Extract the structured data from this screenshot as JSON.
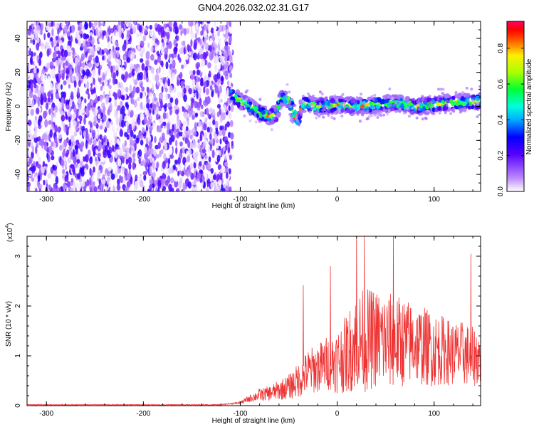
{
  "title": "GN04.2026.032.02.31.G17",
  "chart_data": [
    {
      "type": "heatmap",
      "title": "GN04.2026.032.02.31.G17",
      "xlabel": "Height of straight line (km)",
      "ylabel": "Frequency (Hz)",
      "xlim": [
        -320,
        148
      ],
      "ylim": [
        -50,
        50
      ],
      "xticks": [
        -300,
        -200,
        -100,
        0,
        100
      ],
      "yticks": [
        -40,
        -20,
        0,
        20,
        40
      ],
      "noise_region_x": [
        -320,
        -108
      ],
      "signal_track": {
        "x": [
          -110,
          -100,
          -90,
          -80,
          -70,
          -62,
          -58,
          -50,
          -45,
          -40,
          -36,
          -30,
          -20,
          0,
          20,
          40,
          60,
          80,
          100,
          120,
          148
        ],
        "freq": [
          8,
          3,
          0,
          -4,
          -6,
          -4,
          5,
          4,
          -4,
          -8,
          2,
          1,
          0,
          1,
          0,
          1,
          2,
          0,
          1,
          2,
          3
        ]
      },
      "colorbar": {
        "label": "Normalized spectral amplitude",
        "range": [
          0,
          0.95
        ],
        "ticks": [
          0.0,
          0.2,
          0.4,
          0.6,
          0.8
        ],
        "tick_labels": [
          "0.0",
          "0.2",
          "0.4",
          "0.6",
          "0.8"
        ]
      }
    },
    {
      "type": "line",
      "xlabel": "Height of straight line (km)",
      "ylabel": "SNR (10 * v/v)",
      "scale_label": "(x10",
      "scale_exponent": "4",
      "scale_close": ")",
      "xlim": [
        -320,
        148
      ],
      "ylim": [
        0,
        3.4
      ],
      "xticks": [
        -300,
        -200,
        -100,
        0,
        100
      ],
      "yticks": [
        0,
        1,
        2,
        3
      ],
      "color": "#ee3333",
      "envelope": {
        "x": [
          -320,
          -120,
          -100,
          -90,
          -80,
          -70,
          -60,
          -50,
          -40,
          -30,
          -20,
          -10,
          0,
          10,
          20,
          30,
          40,
          50,
          60,
          70,
          80,
          90,
          100,
          110,
          120,
          130,
          140,
          148
        ],
        "base": [
          0.02,
          0.02,
          0.05,
          0.12,
          0.18,
          0.2,
          0.25,
          0.3,
          0.4,
          0.55,
          0.6,
          0.7,
          0.7,
          0.8,
          1.0,
          1.0,
          1.05,
          1.0,
          1.0,
          1.0,
          1.0,
          0.95,
          0.9,
          0.9,
          0.85,
          0.85,
          0.8,
          0.8
        ],
        "amp": [
          0.01,
          0.01,
          0.05,
          0.15,
          0.25,
          0.3,
          0.4,
          0.5,
          0.7,
          0.9,
          1.0,
          1.1,
          1.3,
          1.6,
          2.0,
          2.1,
          2.0,
          2.0,
          1.9,
          1.8,
          1.6,
          1.6,
          1.5,
          1.4,
          1.3,
          1.3,
          1.2,
          1.2
        ]
      },
      "spikes": [
        {
          "x": -35,
          "y": 2.42
        },
        {
          "x": 20,
          "y": 3.4
        },
        {
          "x": 28,
          "y": 3.4
        },
        {
          "x": 58,
          "y": 3.4
        },
        {
          "x": -7,
          "y": 2.8
        },
        {
          "x": 138,
          "y": 3.05
        }
      ]
    }
  ]
}
